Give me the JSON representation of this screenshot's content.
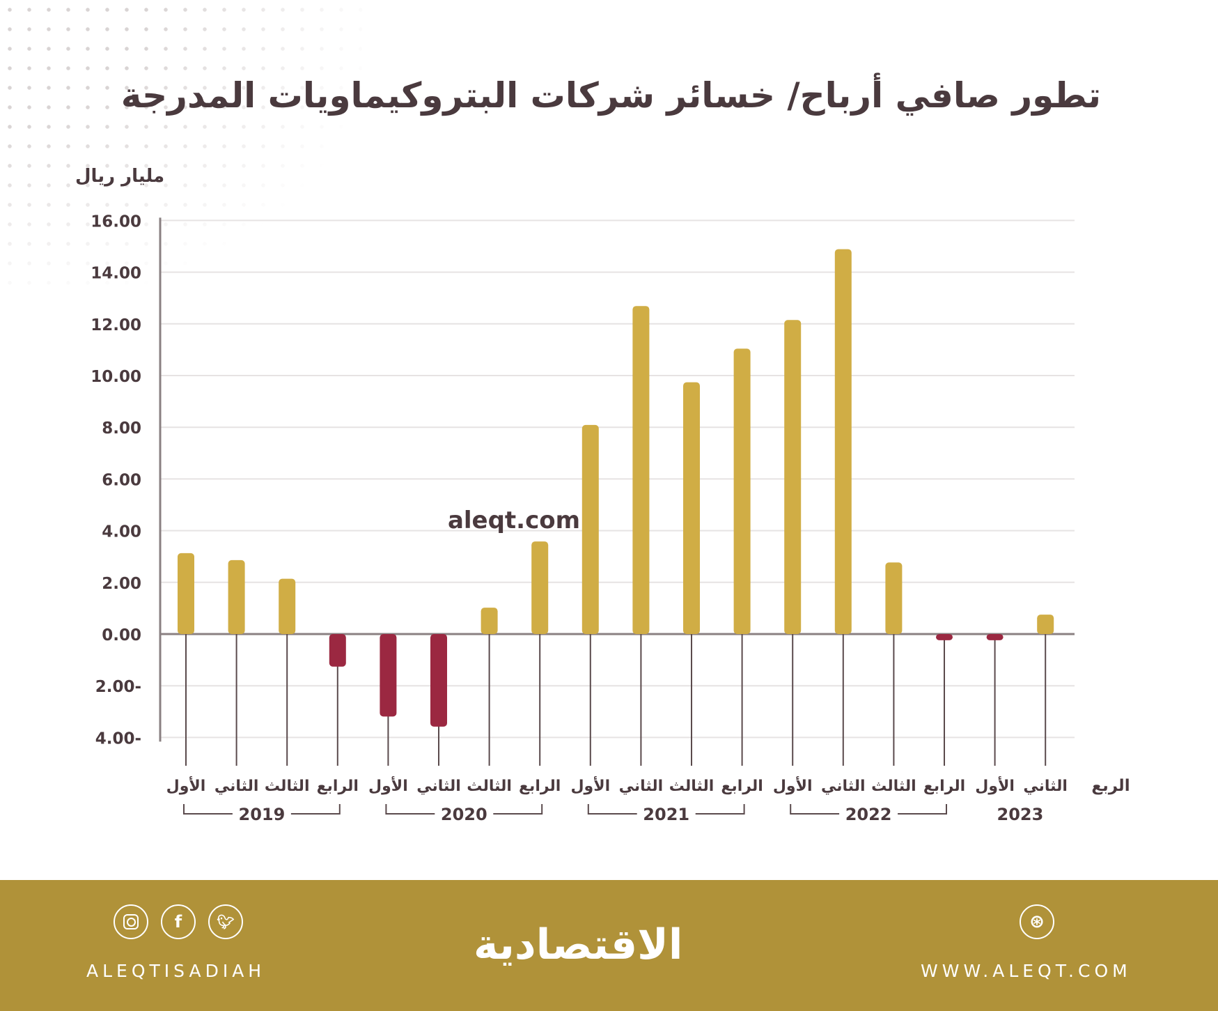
{
  "title": "تطور صافي أرباح/ خسائر شركات البتروكيماويات المدرجة",
  "watermark": "aleqt.com",
  "chart_data": {
    "type": "bar",
    "title": "تطور صافي أرباح/ خسائر شركات البتروكيماويات المدرجة",
    "ylabel": "مليار ريال",
    "xlabel": "الربع",
    "ylim": [
      -4,
      16
    ],
    "yticks": [
      16,
      14,
      12,
      10,
      8,
      6,
      4,
      2,
      0,
      -2,
      -4
    ],
    "ytick_labels": [
      "16.00",
      "14.00",
      "12.00",
      "10.00",
      "8.00",
      "6.00",
      "4.00",
      "2.00",
      "0.00",
      "2.00-",
      "4.00-"
    ],
    "grid": true,
    "categories": [
      "الأول",
      "الثاني",
      "الثالث",
      "الرابع",
      "الأول",
      "الثاني",
      "الثالث",
      "الرابع",
      "الأول",
      "الثاني",
      "الثالث",
      "الرابع",
      "الأول",
      "الثاني",
      "الثالث",
      "الرابع",
      "الأول",
      "الثاني"
    ],
    "years": [
      {
        "label": "2019",
        "count": 4
      },
      {
        "label": "2020",
        "count": 4
      },
      {
        "label": "2021",
        "count": 4
      },
      {
        "label": "2022",
        "count": 4
      },
      {
        "label": "2023",
        "count": 2
      }
    ],
    "values": [
      3.13,
      2.86,
      2.14,
      -1.26,
      -3.19,
      -3.58,
      1.02,
      3.58,
      8.09,
      12.69,
      9.74,
      11.04,
      12.15,
      14.89,
      2.77,
      -0.24,
      -0.24,
      0.75
    ],
    "colors": {
      "positive": "#D0AD45",
      "negative": "#9B2841"
    }
  },
  "footer": {
    "handle": "ALEQTISADIAH",
    "logo": "الاقتصادية",
    "website": "WWW.ALEQT.COM",
    "icons": [
      "instagram-icon",
      "facebook-icon",
      "twitter-icon",
      "dribbble-icon"
    ],
    "color": "#B09239"
  }
}
